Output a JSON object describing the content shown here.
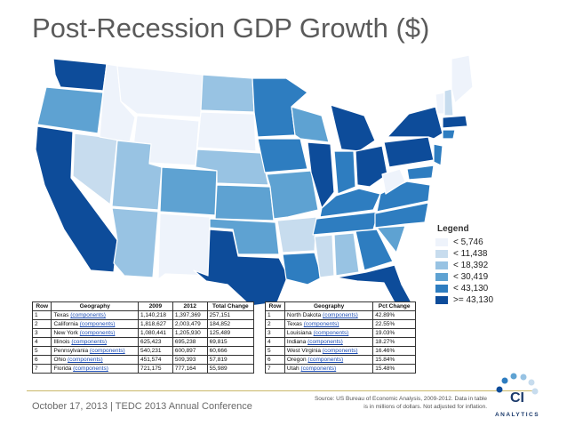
{
  "slide": {
    "title": "Post-Recession GDP Growth ($)",
    "footer": "October 17, 2013 | TEDC 2013 Annual Conference",
    "source_line1": "Source: US Bureau of Economic Analysis, 2009-2012. Data in table",
    "source_line2": "is in millions of dollars. Not adjusted for inflation."
  },
  "legend": {
    "title": "Legend",
    "items": [
      {
        "label": "< 5,746",
        "color": "#eef3fb"
      },
      {
        "label": "< 11,438",
        "color": "#c7dcee"
      },
      {
        "label": "< 18,392",
        "color": "#98c3e3"
      },
      {
        "label": "< 30,419",
        "color": "#5ea2d2"
      },
      {
        "label": "< 43,130",
        "color": "#2e7dc0"
      },
      {
        "label": ">= 43,130",
        "color": "#0d4c9a"
      }
    ]
  },
  "table_change": {
    "headers": [
      "Row",
      "Geography",
      "2009",
      "2012",
      "Total Change"
    ],
    "rows": [
      {
        "row": "1",
        "state": "Texas",
        "link": "(components)",
        "y2009": "1,140,218",
        "y2012": "1,397,369",
        "change": "257,151"
      },
      {
        "row": "2",
        "state": "California",
        "link": "(components)",
        "y2009": "1,818,627",
        "y2012": "2,003,479",
        "change": "184,852"
      },
      {
        "row": "3",
        "state": "New York",
        "link": "(components)",
        "y2009": "1,080,441",
        "y2012": "1,205,930",
        "change": "125,489"
      },
      {
        "row": "4",
        "state": "Illinois",
        "link": "(components)",
        "y2009": "625,423",
        "y2012": "695,238",
        "change": "69,815"
      },
      {
        "row": "5",
        "state": "Pennsylvania",
        "link": "(components)",
        "y2009": "540,231",
        "y2012": "600,897",
        "change": "60,666"
      },
      {
        "row": "6",
        "state": "Ohio",
        "link": "(components)",
        "y2009": "451,574",
        "y2012": "509,393",
        "change": "57,819"
      },
      {
        "row": "7",
        "state": "Florida",
        "link": "(components)",
        "y2009": "721,175",
        "y2012": "777,164",
        "change": "55,989"
      }
    ]
  },
  "table_pct": {
    "headers": [
      "Row",
      "Geography",
      "Pct Change"
    ],
    "rows": [
      {
        "row": "1",
        "state": "North Dakota",
        "link": "(components)",
        "pct": "42.89%"
      },
      {
        "row": "2",
        "state": "Texas",
        "link": "(components)",
        "pct": "22.55%"
      },
      {
        "row": "3",
        "state": "Louisiana",
        "link": "(components)",
        "pct": "19.03%"
      },
      {
        "row": "4",
        "state": "Indiana",
        "link": "(components)",
        "pct": "18.27%"
      },
      {
        "row": "5",
        "state": "West Virginia",
        "link": "(components)",
        "pct": "16.46%"
      },
      {
        "row": "6",
        "state": "Oregon",
        "link": "(components)",
        "pct": "15.84%"
      },
      {
        "row": "7",
        "state": "Utah",
        "link": "(components)",
        "pct": "15.48%"
      }
    ]
  },
  "logo": {
    "line1": "CI",
    "line2": "ANALYTICS"
  },
  "colors": {
    "accent_line": "#c9b86a",
    "title": "#5a5a5a",
    "link": "#1f4fb5"
  }
}
